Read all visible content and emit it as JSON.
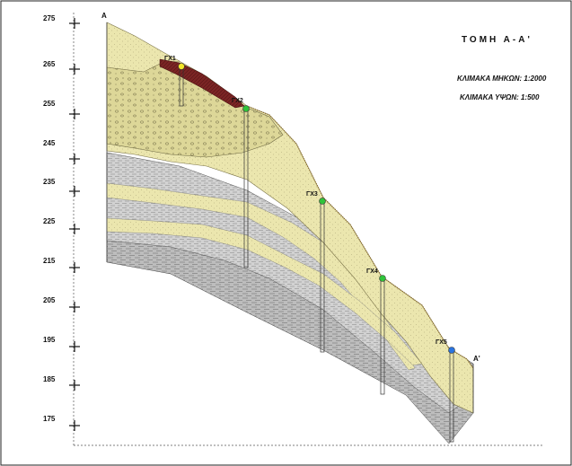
{
  "section": {
    "title": "ΤΟΜΗ Α-Α'",
    "scale_length": "ΚΛΙΜΑΚΑ ΜΗΚΩΝ: 1:2000",
    "scale_height": "ΚΛΙΜΑΚΑ ΥΨΩΝ: 1:500",
    "start_label": "Α",
    "end_label": "Α'"
  },
  "axis": {
    "ticks": [
      "275",
      "265",
      "255",
      "245",
      "235",
      "225",
      "215",
      "205",
      "195",
      "185",
      "175"
    ]
  },
  "boreholes": [
    {
      "name": "ΓΧ1",
      "color": "#f2e62a"
    },
    {
      "name": "ΓΧ2",
      "color": "#2fc43a"
    },
    {
      "name": "ΓΧ3",
      "color": "#2fc43a"
    },
    {
      "name": "ΓΧ4",
      "color": "#2fc43a"
    },
    {
      "name": "ΓΧ5",
      "color": "#2a74e0"
    }
  ],
  "colors": {
    "sand": "#e9e4a8",
    "gravel": "#ddd798",
    "clay": "#bdbdbd",
    "marl": "#d4d4d4",
    "topsoil": "#7a2424"
  }
}
